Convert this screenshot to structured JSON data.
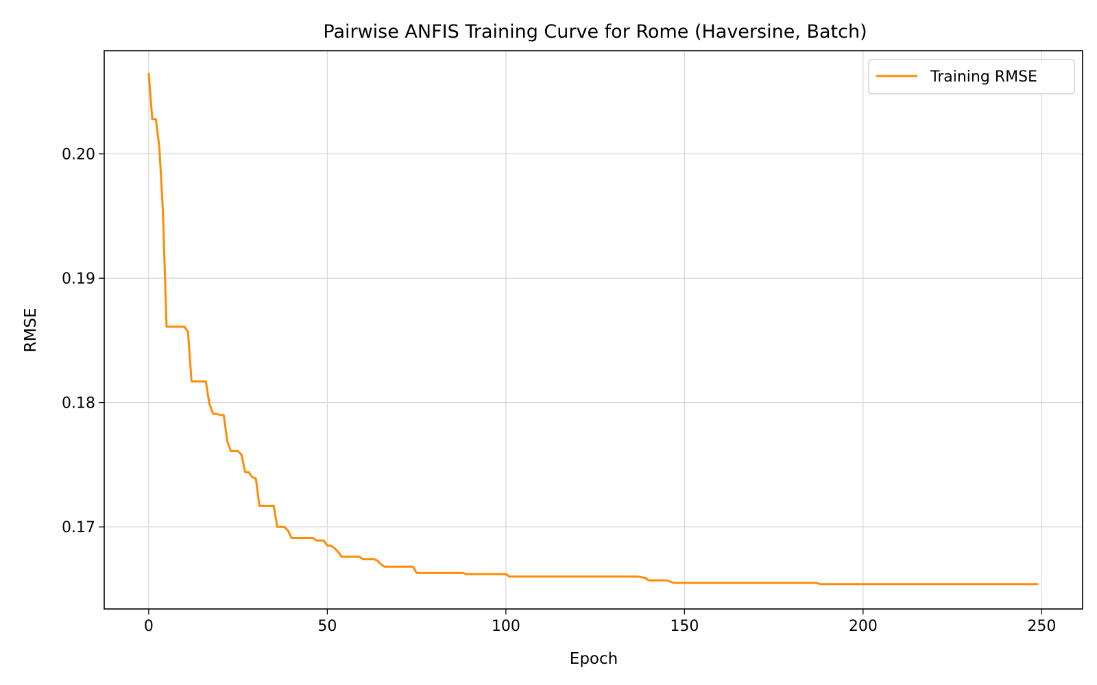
{
  "chart_data": {
    "type": "line",
    "title": "Pairwise ANFIS Training Curve for Rome (Haversine, Batch)",
    "xlabel": "Epoch",
    "ylabel": "RMSE",
    "xlim": [
      -12.45,
      261.45
    ],
    "ylim": [
      0.1634,
      0.2083
    ],
    "grid": true,
    "legend_position": "top-right",
    "xticks": [
      0,
      50,
      100,
      150,
      200,
      250
    ],
    "xtick_labels": [
      "0",
      "50",
      "100",
      "150",
      "200",
      "250"
    ],
    "yticks": [
      0.17,
      0.18,
      0.19,
      0.2
    ],
    "ytick_labels": [
      "0.17",
      "0.18",
      "0.19",
      "0.20"
    ],
    "series": [
      {
        "name": "Training RMSE",
        "color": "#ff8c00",
        "points": [
          [
            0,
            0.2065
          ],
          [
            1,
            0.2028
          ],
          [
            2,
            0.2028
          ],
          [
            3,
            0.2005
          ],
          [
            4,
            0.1953
          ],
          [
            5,
            0.1861
          ],
          [
            6,
            0.1861
          ],
          [
            10,
            0.1861
          ],
          [
            11,
            0.1857
          ],
          [
            12,
            0.1817
          ],
          [
            16,
            0.1817
          ],
          [
            17,
            0.1799
          ],
          [
            18,
            0.1791
          ],
          [
            19,
            0.1791
          ],
          [
            20,
            0.179
          ],
          [
            21,
            0.179
          ],
          [
            22,
            0.1769
          ],
          [
            23,
            0.1761
          ],
          [
            25,
            0.1761
          ],
          [
            26,
            0.1758
          ],
          [
            27,
            0.1744
          ],
          [
            28,
            0.1744
          ],
          [
            29,
            0.174
          ],
          [
            30,
            0.1739
          ],
          [
            31,
            0.1717
          ],
          [
            35,
            0.1717
          ],
          [
            36,
            0.17
          ],
          [
            38,
            0.17
          ],
          [
            39,
            0.1697
          ],
          [
            40,
            0.1691
          ],
          [
            46,
            0.1691
          ],
          [
            47,
            0.1689
          ],
          [
            49,
            0.1689
          ],
          [
            50,
            0.1685
          ],
          [
            51,
            0.1685
          ],
          [
            52,
            0.1683
          ],
          [
            53,
            0.168
          ],
          [
            54,
            0.1676
          ],
          [
            59,
            0.1676
          ],
          [
            60,
            0.1674
          ],
          [
            63,
            0.1674
          ],
          [
            64,
            0.1673
          ],
          [
            65,
            0.167
          ],
          [
            66,
            0.1668
          ],
          [
            74,
            0.1668
          ],
          [
            75,
            0.1663
          ],
          [
            88,
            0.1663
          ],
          [
            89,
            0.1662
          ],
          [
            100,
            0.1662
          ],
          [
            101,
            0.166
          ],
          [
            137,
            0.166
          ],
          [
            139,
            0.1659
          ],
          [
            140,
            0.1657
          ],
          [
            145,
            0.1657
          ],
          [
            147,
            0.1655
          ],
          [
            160,
            0.1655
          ],
          [
            161,
            0.1655
          ],
          [
            187,
            0.1655
          ],
          [
            188,
            0.1654
          ],
          [
            249,
            0.1654
          ]
        ]
      }
    ]
  }
}
